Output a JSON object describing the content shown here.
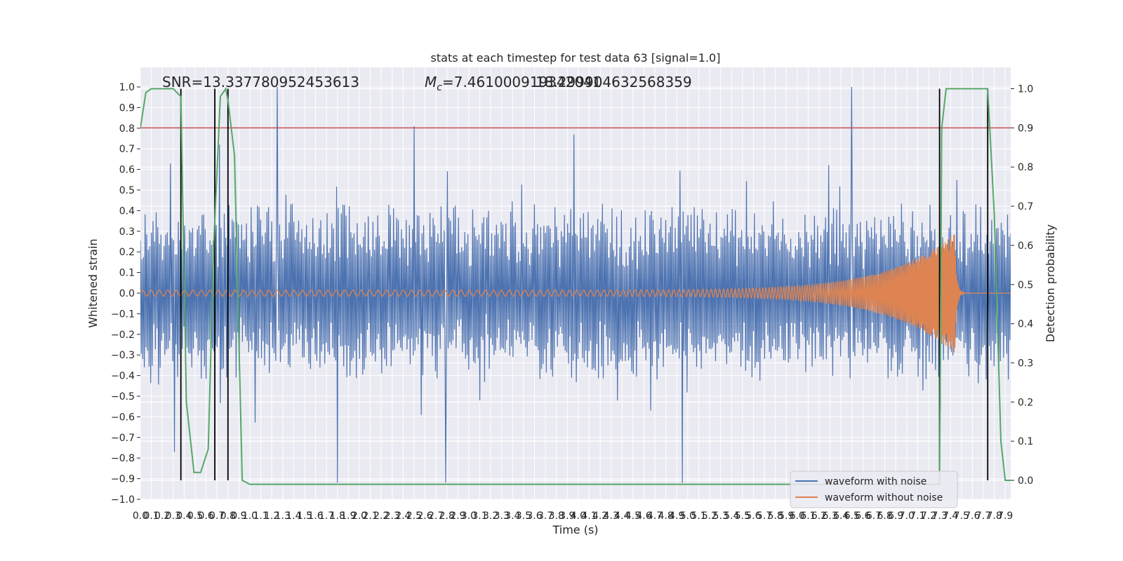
{
  "chart_data": {
    "type": "line",
    "title": "stats at each timestep for test data 63 [signal=1.0]",
    "xlabel": "Time (s)",
    "ylabel": "Whitened strain",
    "y2label": "Detection probability",
    "xlim": [
      0,
      7.95
    ],
    "ylim": [
      -1.0,
      1.0
    ],
    "y2lim": [
      -0.05,
      1.05
    ],
    "x_ticks": [
      "0.0",
      "0.1",
      "0.2",
      "0.3",
      "0.4",
      "0.5",
      "0.6",
      "0.7",
      "0.8",
      "0.9",
      "1.0",
      "1.1",
      "1.2",
      "1.3",
      "1.4",
      "1.5",
      "1.6",
      "1.7",
      "1.8",
      "1.9",
      "2.0",
      "2.1",
      "2.2",
      "2.3",
      "2.4",
      "2.5",
      "2.6",
      "2.7",
      "2.8",
      "2.9",
      "3.0",
      "3.1",
      "3.2",
      "3.3",
      "3.4",
      "3.5",
      "3.6",
      "3.7",
      "3.8",
      "3.9",
      "4.0",
      "4.1",
      "4.2",
      "4.3",
      "4.4",
      "4.5",
      "4.6",
      "4.7",
      "4.8",
      "4.9",
      "5.0",
      "5.1",
      "5.2",
      "5.3",
      "5.4",
      "5.5",
      "5.6",
      "5.7",
      "5.8",
      "5.9",
      "6.0",
      "6.1",
      "6.2",
      "6.3",
      "6.4",
      "6.5",
      "6.6",
      "6.7",
      "6.8",
      "6.9",
      "7.0",
      "7.1",
      "7.2",
      "7.3",
      "7.4",
      "7.5",
      "7.6",
      "7.7",
      "7.8",
      "7.9"
    ],
    "y_ticks": [
      "−1.0",
      "−0.9",
      "−0.8",
      "−0.7",
      "−0.6",
      "−0.5",
      "−0.4",
      "−0.3",
      "−0.2",
      "−0.1",
      "0.0",
      "0.1",
      "0.2",
      "0.3",
      "0.4",
      "0.5",
      "0.6",
      "0.7",
      "0.8",
      "0.9",
      "1.0"
    ],
    "y2_ticks": [
      "0.0",
      "0.1",
      "0.2",
      "0.3",
      "0.4",
      "0.5",
      "0.6",
      "0.7",
      "0.8",
      "0.9",
      "1.0"
    ],
    "annotations": {
      "snr": "SNR=13.337780952453613",
      "mc": "=7.461000919342041",
      "mc_symbol": "M",
      "mc_sub": "c",
      "mc_overlap": "18.299904632568359"
    },
    "threshold_y2": 0.9,
    "vertical_lines_x": [
      0.37,
      0.68,
      0.8,
      7.3,
      7.74
    ],
    "legend": [
      "waveform with noise",
      "waveform without noise"
    ],
    "colors": {
      "noise": "#4c72b0",
      "clean": "#dd8452",
      "prob": "#55a868",
      "threshold": "#c44e52",
      "vline": "#000000",
      "panel": "#eaeaf2",
      "grid": "#ffffff"
    },
    "series": [
      {
        "name": "waveform with noise",
        "axis": "left",
        "envelope_typical": 0.45,
        "spikes_max": [
          [
            1.25,
            1.0
          ],
          [
            6.5,
            1.0
          ],
          [
            2.5,
            0.81
          ],
          [
            0.72,
            0.72
          ],
          [
            3.96,
            0.77
          ]
        ],
        "spikes_min": [
          [
            1.8,
            -0.92
          ],
          [
            2.79,
            -0.92
          ],
          [
            4.95,
            -0.92
          ],
          [
            0.31,
            -0.77
          ]
        ]
      },
      {
        "name": "waveform without noise",
        "axis": "left",
        "amplitude_start": 0.015,
        "peak_time": 7.44,
        "peak_amplitude": 0.29,
        "frequency_start": 13,
        "frequency_end": 120
      },
      {
        "name": "detection probability",
        "axis": "right",
        "x": [
          0.0,
          0.05,
          0.1,
          0.2,
          0.3,
          0.37,
          0.42,
          0.49,
          0.55,
          0.62,
          0.67,
          0.73,
          0.78,
          0.8,
          0.86,
          0.93,
          1.0,
          2.0,
          4.0,
          6.0,
          7.0,
          7.3,
          7.32,
          7.36,
          7.5,
          7.74,
          7.8,
          7.86,
          7.9,
          7.95
        ],
        "y": [
          0.9,
          0.99,
          1.0,
          1.0,
          1.0,
          0.98,
          0.2,
          0.02,
          0.02,
          0.08,
          0.6,
          0.98,
          1.0,
          0.97,
          0.83,
          0.0,
          -0.01,
          -0.01,
          -0.01,
          -0.01,
          -0.01,
          -0.01,
          0.9,
          1.0,
          1.0,
          1.0,
          0.68,
          0.1,
          0.0,
          0.0
        ]
      }
    ]
  }
}
